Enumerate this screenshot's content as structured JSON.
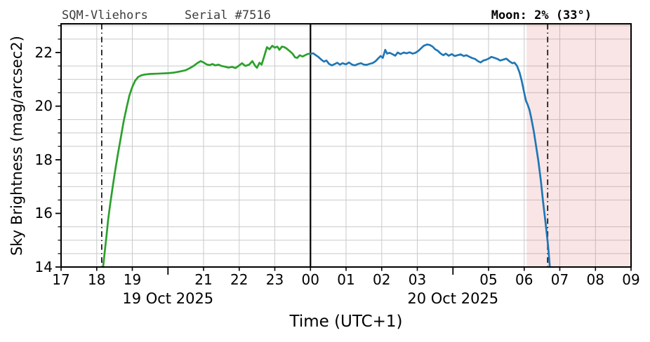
{
  "header": {
    "station": "SQM-Vliehors",
    "serial": "Serial #7516",
    "moon": "Moon: 2% (33°)"
  },
  "axes": {
    "x_label": "Time (UTC+1)",
    "y_label": "Sky Brightness (mag/arcsec2)"
  },
  "chart_data": {
    "type": "line",
    "title": "SQM-Vliehors  Serial #7516",
    "xlabel": "Time (UTC+1)",
    "ylabel": "Sky Brightness (mag/arcsec2)",
    "x_unit_note": "decimal hours UTC+1; 17=17:00 19 Oct 2025, 24=00:00 20 Oct 2025, 33=09:00",
    "xlim": [
      17,
      33
    ],
    "ylim": [
      14,
      23.07
    ],
    "x_ticks": [
      {
        "t": 17,
        "label": "17",
        "long": false
      },
      {
        "t": 18,
        "label": "18",
        "long": false
      },
      {
        "t": 19,
        "label": "19",
        "long": false
      },
      {
        "t": 20,
        "label": "",
        "long": true
      },
      {
        "t": 21,
        "label": "21",
        "long": false
      },
      {
        "t": 22,
        "label": "22",
        "long": false
      },
      {
        "t": 23,
        "label": "23",
        "long": false
      },
      {
        "t": 24,
        "label": "00",
        "long": false
      },
      {
        "t": 25,
        "label": "01",
        "long": false
      },
      {
        "t": 26,
        "label": "02",
        "long": false
      },
      {
        "t": 27,
        "label": "03",
        "long": false
      },
      {
        "t": 28,
        "label": "",
        "long": true
      },
      {
        "t": 29,
        "label": "05",
        "long": false
      },
      {
        "t": 30,
        "label": "06",
        "long": false
      },
      {
        "t": 31,
        "label": "07",
        "long": false
      },
      {
        "t": 32,
        "label": "08",
        "long": false
      },
      {
        "t": 33,
        "label": "09",
        "long": false
      }
    ],
    "date_labels": [
      {
        "t": 20,
        "label": "19 Oct 2025"
      },
      {
        "t": 28,
        "label": "20 Oct 2025"
      }
    ],
    "y_major_ticks": [
      {
        "v": 14,
        "label": "14"
      },
      {
        "v": 16,
        "label": "16"
      },
      {
        "v": 18,
        "label": "18"
      },
      {
        "v": 20,
        "label": "20"
      },
      {
        "v": 22,
        "label": "22"
      }
    ],
    "y_minor_ticks": [
      14.5,
      15,
      15.5,
      16.5,
      17,
      17.5,
      18.5,
      19,
      19.5,
      20.5,
      21,
      21.5,
      22.5,
      23
    ],
    "grid": {
      "vertical_hours": [
        18,
        19,
        20,
        21,
        22,
        23,
        24,
        25,
        26,
        27,
        28,
        29,
        30,
        31,
        32
      ],
      "horizontal_values": [
        14.5,
        15,
        15.5,
        16.5,
        17,
        17.5,
        18.5,
        19,
        19.5,
        20.5,
        21,
        21.5,
        22.5,
        23
      ],
      "color": "#cacaca"
    },
    "shaded_region": {
      "t0": 30.07,
      "t1": 33,
      "color": "rgba(214,80,84,0.15)"
    },
    "vlines": [
      {
        "t": 18.14,
        "style": "dashdot",
        "color": "#1c1c1c",
        "width": 1.8
      },
      {
        "t": 24.0,
        "style": "solid",
        "color": "#000000",
        "width": 2.2
      },
      {
        "t": 30.66,
        "style": "dashdot",
        "color": "#1c1c1c",
        "width": 1.8
      }
    ],
    "series": [
      {
        "name": "19 Oct 2025",
        "color": "#2ca02c",
        "points": [
          [
            18.18,
            14.0
          ],
          [
            18.22,
            14.5
          ],
          [
            18.27,
            15.1
          ],
          [
            18.32,
            15.75
          ],
          [
            18.38,
            16.35
          ],
          [
            18.45,
            17.0
          ],
          [
            18.52,
            17.6
          ],
          [
            18.6,
            18.25
          ],
          [
            18.68,
            18.85
          ],
          [
            18.76,
            19.45
          ],
          [
            18.84,
            19.95
          ],
          [
            18.92,
            20.4
          ],
          [
            19.0,
            20.72
          ],
          [
            19.08,
            20.95
          ],
          [
            19.16,
            21.08
          ],
          [
            19.25,
            21.15
          ],
          [
            19.35,
            21.18
          ],
          [
            19.5,
            21.2
          ],
          [
            19.67,
            21.21
          ],
          [
            19.83,
            21.22
          ],
          [
            20.0,
            21.23
          ],
          [
            20.17,
            21.25
          ],
          [
            20.33,
            21.29
          ],
          [
            20.5,
            21.34
          ],
          [
            20.62,
            21.42
          ],
          [
            20.72,
            21.5
          ],
          [
            20.82,
            21.6
          ],
          [
            20.92,
            21.68
          ],
          [
            21.0,
            21.63
          ],
          [
            21.08,
            21.56
          ],
          [
            21.17,
            21.53
          ],
          [
            21.25,
            21.57
          ],
          [
            21.33,
            21.52
          ],
          [
            21.42,
            21.55
          ],
          [
            21.5,
            21.5
          ],
          [
            21.6,
            21.47
          ],
          [
            21.7,
            21.44
          ],
          [
            21.8,
            21.46
          ],
          [
            21.9,
            21.42
          ],
          [
            22.0,
            21.52
          ],
          [
            22.08,
            21.6
          ],
          [
            22.17,
            21.5
          ],
          [
            22.28,
            21.55
          ],
          [
            22.37,
            21.68
          ],
          [
            22.45,
            21.5
          ],
          [
            22.5,
            21.43
          ],
          [
            22.57,
            21.62
          ],
          [
            22.63,
            21.55
          ],
          [
            22.7,
            21.85
          ],
          [
            22.78,
            22.2
          ],
          [
            22.85,
            22.12
          ],
          [
            22.93,
            22.25
          ],
          [
            23.0,
            22.18
          ],
          [
            23.07,
            22.22
          ],
          [
            23.13,
            22.1
          ],
          [
            23.2,
            22.22
          ],
          [
            23.27,
            22.2
          ],
          [
            23.33,
            22.15
          ],
          [
            23.42,
            22.05
          ],
          [
            23.5,
            21.95
          ],
          [
            23.57,
            21.82
          ],
          [
            23.63,
            21.8
          ],
          [
            23.7,
            21.9
          ],
          [
            23.78,
            21.85
          ],
          [
            23.85,
            21.9
          ],
          [
            23.93,
            21.95
          ],
          [
            24.0,
            21.95
          ]
        ]
      },
      {
        "name": "20 Oct 2025",
        "color": "#1f77b4",
        "points": [
          [
            24.0,
            21.95
          ],
          [
            24.08,
            21.97
          ],
          [
            24.15,
            21.9
          ],
          [
            24.22,
            21.84
          ],
          [
            24.3,
            21.74
          ],
          [
            24.38,
            21.66
          ],
          [
            24.45,
            21.7
          ],
          [
            24.52,
            21.58
          ],
          [
            24.6,
            21.52
          ],
          [
            24.68,
            21.57
          ],
          [
            24.75,
            21.62
          ],
          [
            24.83,
            21.55
          ],
          [
            24.9,
            21.6
          ],
          [
            25.0,
            21.56
          ],
          [
            25.08,
            21.63
          ],
          [
            25.17,
            21.55
          ],
          [
            25.25,
            21.52
          ],
          [
            25.33,
            21.57
          ],
          [
            25.42,
            21.6
          ],
          [
            25.5,
            21.55
          ],
          [
            25.58,
            21.54
          ],
          [
            25.67,
            21.58
          ],
          [
            25.75,
            21.61
          ],
          [
            25.83,
            21.68
          ],
          [
            25.9,
            21.78
          ],
          [
            25.97,
            21.87
          ],
          [
            26.03,
            21.8
          ],
          [
            26.1,
            22.1
          ],
          [
            26.15,
            21.96
          ],
          [
            26.22,
            21.99
          ],
          [
            26.3,
            21.94
          ],
          [
            26.38,
            21.88
          ],
          [
            26.45,
            22.0
          ],
          [
            26.53,
            21.94
          ],
          [
            26.62,
            22.0
          ],
          [
            26.7,
            21.97
          ],
          [
            26.78,
            22.01
          ],
          [
            26.87,
            21.96
          ],
          [
            26.95,
            21.99
          ],
          [
            27.03,
            22.06
          ],
          [
            27.1,
            22.15
          ],
          [
            27.18,
            22.25
          ],
          [
            27.27,
            22.3
          ],
          [
            27.35,
            22.28
          ],
          [
            27.43,
            22.22
          ],
          [
            27.5,
            22.12
          ],
          [
            27.58,
            22.06
          ],
          [
            27.65,
            21.97
          ],
          [
            27.73,
            21.9
          ],
          [
            27.8,
            21.96
          ],
          [
            27.88,
            21.88
          ],
          [
            27.97,
            21.94
          ],
          [
            28.05,
            21.87
          ],
          [
            28.13,
            21.9
          ],
          [
            28.22,
            21.93
          ],
          [
            28.3,
            21.87
          ],
          [
            28.38,
            21.9
          ],
          [
            28.45,
            21.85
          ],
          [
            28.53,
            21.8
          ],
          [
            28.62,
            21.76
          ],
          [
            28.7,
            21.68
          ],
          [
            28.78,
            21.63
          ],
          [
            28.85,
            21.7
          ],
          [
            28.93,
            21.73
          ],
          [
            29.0,
            21.77
          ],
          [
            29.08,
            21.84
          ],
          [
            29.17,
            21.8
          ],
          [
            29.25,
            21.76
          ],
          [
            29.33,
            21.7
          ],
          [
            29.42,
            21.74
          ],
          [
            29.5,
            21.77
          ],
          [
            29.58,
            21.68
          ],
          [
            29.67,
            21.6
          ],
          [
            29.73,
            21.62
          ],
          [
            29.8,
            21.5
          ],
          [
            29.87,
            21.25
          ],
          [
            29.93,
            20.95
          ],
          [
            30.0,
            20.5
          ],
          [
            30.05,
            20.2
          ],
          [
            30.1,
            20.05
          ],
          [
            30.15,
            19.85
          ],
          [
            30.2,
            19.55
          ],
          [
            30.27,
            19.05
          ],
          [
            30.33,
            18.55
          ],
          [
            30.4,
            17.95
          ],
          [
            30.47,
            17.2
          ],
          [
            30.53,
            16.45
          ],
          [
            30.6,
            15.65
          ],
          [
            30.67,
            14.8
          ],
          [
            30.72,
            14.0
          ]
        ]
      }
    ]
  }
}
